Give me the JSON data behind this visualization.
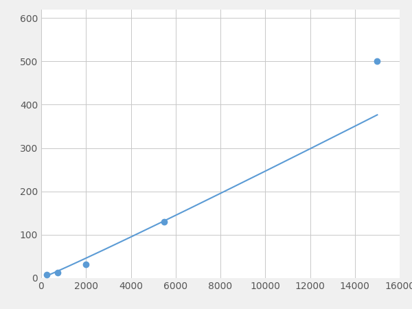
{
  "x_data": [
    250,
    750,
    2000,
    5500,
    15000
  ],
  "y_data": [
    8,
    12,
    32,
    130,
    500
  ],
  "line_color": "#5b9bd5",
  "marker_color": "#5b9bd5",
  "marker_size": 6,
  "marker_style": "o",
  "line_width": 1.5,
  "xlim": [
    0,
    16000
  ],
  "ylim": [
    0,
    620
  ],
  "xticks": [
    0,
    2000,
    4000,
    6000,
    8000,
    10000,
    12000,
    14000,
    16000
  ],
  "yticks": [
    0,
    100,
    200,
    300,
    400,
    500,
    600
  ],
  "grid_color": "#c8c8c8",
  "grid_linestyle": "-",
  "grid_linewidth": 0.7,
  "background_color": "#ffffff",
  "figure_facecolor": "#f0f0f0",
  "tick_labelsize": 10,
  "tick_color": "#555555"
}
